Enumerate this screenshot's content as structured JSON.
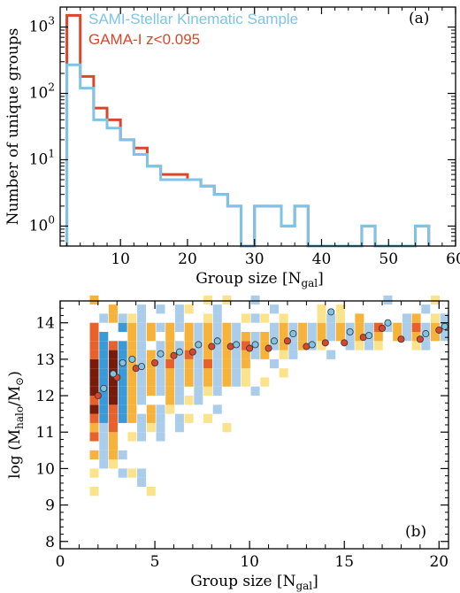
{
  "colors": {
    "sami": "#7ec4e6",
    "gama": "#d9472b",
    "heat_dark": "#7a1a08",
    "heat_mid": "#e8602a",
    "heat_light": "#f7b23a",
    "heat_pale": "#fbe38c",
    "blue_dark": "#3a9ad8",
    "blue_light": "#a9cdea"
  },
  "chart_data": [
    {
      "panel": "a",
      "type": "line",
      "panel_tag": "(a)",
      "xlabel": "Group size [N",
      "xlabel_sub": "gal",
      "xlabel_end": "]",
      "ylabel": "Number of unique groups",
      "xlim": [
        1,
        60
      ],
      "ylim": [
        0.5,
        2000
      ],
      "yscale": "log",
      "x_ticks": [
        10,
        20,
        30,
        40,
        50,
        60
      ],
      "y_ticks": [
        {
          "v": 1,
          "base": "10",
          "exp": "0"
        },
        {
          "v": 10,
          "base": "10",
          "exp": "1"
        },
        {
          "v": 100,
          "base": "10",
          "exp": "2"
        },
        {
          "v": 1000,
          "base": "10",
          "exp": "3"
        }
      ],
      "bin_edges": [
        2,
        4,
        6,
        8,
        10,
        12,
        14,
        16,
        18,
        20,
        22,
        24,
        26,
        28,
        30,
        32,
        34,
        36,
        38,
        40,
        42,
        44,
        46,
        48,
        50,
        52,
        54,
        56
      ],
      "series": [
        {
          "name": "GAMA-I z<0.095",
          "color_key": "gama",
          "counts": [
            1500,
            180,
            60,
            40,
            20,
            15,
            8,
            6,
            6,
            5,
            4,
            3,
            2,
            0.5,
            2,
            2,
            1,
            2,
            0.5,
            0.5,
            0.5,
            0.5,
            1,
            0.5,
            0.5,
            0.5,
            1
          ]
        },
        {
          "name": "SAMI-Stellar Kinematic Sample",
          "color_key": "sami",
          "counts": [
            270,
            120,
            40,
            30,
            20,
            12,
            8,
            5,
            5,
            5,
            4,
            3,
            2,
            0.5,
            2,
            2,
            1,
            2,
            0.5,
            0.5,
            0.5,
            0.5,
            1,
            0.5,
            0.5,
            0.5,
            1
          ]
        }
      ],
      "legend": [
        "SAMI-Stellar Kinematic Sample",
        "GAMA-I z<0.095"
      ]
    },
    {
      "panel": "b",
      "type": "heatmap",
      "panel_tag": "(b)",
      "xlabel": "Group size [N",
      "xlabel_sub": "gal",
      "xlabel_end": "]",
      "ylabel_pre": "log (M",
      "ylabel_sub": "halo",
      "ylabel_mid": "/M",
      "ylabel_sym": "⊙",
      "ylabel_end": ")",
      "xlim": [
        0,
        20.5
      ],
      "ylim": [
        7.8,
        14.6
      ],
      "x_ticks": [
        0,
        5,
        10,
        15,
        20
      ],
      "y_ticks": [
        8,
        9,
        10,
        11,
        12,
        13,
        14
      ],
      "gama_medians": {
        "x": [
          2,
          3,
          4,
          5,
          6,
          7,
          8,
          9,
          10,
          11,
          12,
          13,
          14,
          15,
          16,
          17,
          18,
          19,
          20
        ],
        "y": [
          12.0,
          12.5,
          12.75,
          12.9,
          13.1,
          13.2,
          13.35,
          13.35,
          13.3,
          13.3,
          13.5,
          13.35,
          13.45,
          13.45,
          13.6,
          13.85,
          13.55,
          13.55,
          13.8
        ]
      },
      "sami_medians": {
        "x": [
          2.3,
          2.8,
          3.3,
          3.8,
          4.3,
          5.3,
          6.3,
          7.3,
          8.3,
          9.3,
          10.3,
          11.3,
          12.3,
          13.3,
          14.3,
          15.3,
          16.3,
          17.3,
          19.3,
          20.3
        ],
        "y": [
          12.2,
          12.6,
          12.9,
          13.0,
          12.8,
          13.15,
          13.2,
          13.4,
          13.5,
          13.4,
          13.4,
          13.5,
          13.7,
          13.4,
          14.3,
          13.75,
          13.65,
          14.0,
          13.7,
          13.9
        ]
      }
    }
  ]
}
